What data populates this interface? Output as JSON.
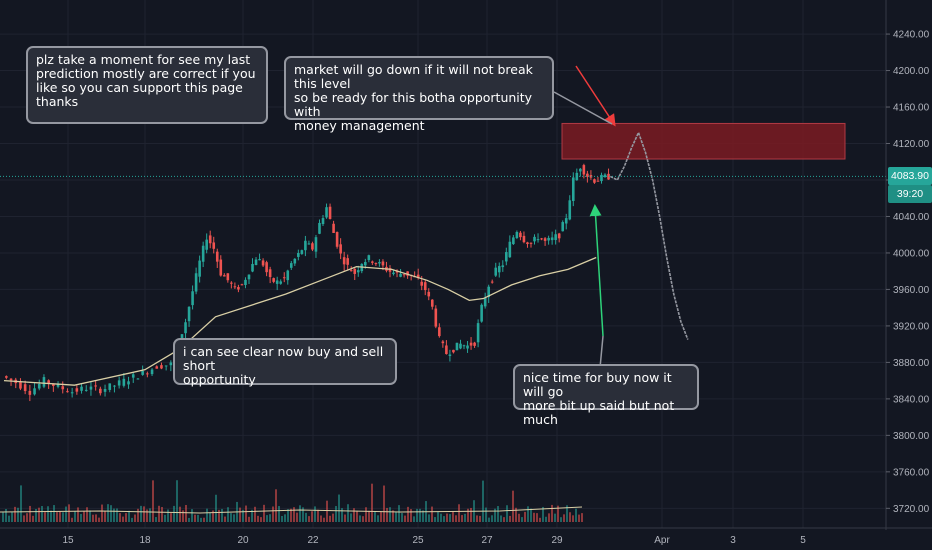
{
  "colors": {
    "background": "#131722",
    "grid": "#1f2330",
    "up": "#26a69a",
    "down": "#ef5350",
    "ma": "#d9cfa5",
    "zone": "#7b1b22",
    "current_price": "#26a69a"
  },
  "chart_data": {
    "type": "candlestick",
    "y_axis": {
      "ticks": [
        "3720.00",
        "3760.00",
        "3800.00",
        "3840.00",
        "3880.00",
        "3920.00",
        "3960.00",
        "4000.00",
        "4040.00",
        "4080.00",
        "4120.00",
        "4160.00",
        "4200.00",
        "4240.00"
      ],
      "ylim": [
        3705,
        4262
      ]
    },
    "x_axis": {
      "ticks": [
        "15",
        "18",
        "20",
        "22",
        "25",
        "27",
        "29",
        "Apr",
        "3",
        "5"
      ]
    },
    "current_price": {
      "value": 4083.9,
      "label": "4083.90",
      "countdown": "39:20"
    },
    "resistance_zone": {
      "from": 4103,
      "to": 4142
    },
    "price_path": [
      [
        0,
        3865
      ],
      [
        2,
        3858
      ],
      [
        4,
        3848
      ],
      [
        6,
        3860
      ],
      [
        8,
        3853
      ],
      [
        10,
        3848
      ],
      [
        12,
        3852
      ],
      [
        14,
        3850
      ],
      [
        16,
        3855
      ],
      [
        18,
        3862
      ],
      [
        20,
        3868
      ],
      [
        22,
        3876
      ],
      [
        24,
        3878
      ],
      [
        25,
        3900
      ],
      [
        26,
        3925
      ],
      [
        27,
        3958
      ],
      [
        28,
        3990
      ],
      [
        29,
        4018
      ],
      [
        30,
        4005
      ],
      [
        31,
        3978
      ],
      [
        32,
        3970
      ],
      [
        33,
        3960
      ],
      [
        34,
        3965
      ],
      [
        35,
        3980
      ],
      [
        36,
        3995
      ],
      [
        37,
        3988
      ],
      [
        38,
        3970
      ],
      [
        39,
        3968
      ],
      [
        40,
        3972
      ],
      [
        41,
        3988
      ],
      [
        42,
        3998
      ],
      [
        43,
        4010
      ],
      [
        44,
        4005
      ],
      [
        45,
        4032
      ],
      [
        46,
        4050
      ],
      [
        47,
        4022
      ],
      [
        48,
        3998
      ],
      [
        49,
        3985
      ],
      [
        50,
        3978
      ],
      [
        51,
        3990
      ],
      [
        52,
        3994
      ],
      [
        53,
        3990
      ],
      [
        54,
        3985
      ],
      [
        55,
        3980
      ],
      [
        56,
        3977
      ],
      [
        57,
        3978
      ],
      [
        58,
        3975
      ],
      [
        59,
        3970
      ],
      [
        60,
        3960
      ],
      [
        61,
        3940
      ],
      [
        62,
        3905
      ],
      [
        63,
        3890
      ],
      [
        64,
        3895
      ],
      [
        65,
        3900
      ],
      [
        66,
        3898
      ],
      [
        67,
        3902
      ],
      [
        68,
        3940
      ],
      [
        69,
        3965
      ],
      [
        70,
        3980
      ],
      [
        71,
        3988
      ],
      [
        72,
        4010
      ],
      [
        73,
        4025
      ],
      [
        74,
        4015
      ],
      [
        75,
        4010
      ],
      [
        76,
        4018
      ],
      [
        77,
        4012
      ],
      [
        78,
        4015
      ],
      [
        79,
        4020
      ],
      [
        80,
        4040
      ],
      [
        81,
        4080
      ],
      [
        82,
        4095
      ],
      [
        83,
        4085
      ],
      [
        84,
        4080
      ],
      [
        85,
        4082
      ],
      [
        86,
        4083.9
      ]
    ],
    "moving_average": [
      [
        0,
        3860
      ],
      [
        10,
        3855
      ],
      [
        20,
        3872
      ],
      [
        25,
        3895
      ],
      [
        30,
        3930
      ],
      [
        40,
        3955
      ],
      [
        45,
        3970
      ],
      [
        50,
        3985
      ],
      [
        55,
        3982
      ],
      [
        60,
        3970
      ],
      [
        63,
        3960
      ],
      [
        66,
        3948
      ],
      [
        68,
        3950
      ],
      [
        72,
        3965
      ],
      [
        76,
        3975
      ],
      [
        80,
        3982
      ],
      [
        84,
        3995
      ]
    ],
    "projection": [
      [
        86,
        4083.9
      ],
      [
        87,
        4080
      ],
      [
        88,
        4095
      ],
      [
        89,
        4115
      ],
      [
        90,
        4132
      ],
      [
        91,
        4110
      ],
      [
        92,
        4080
      ],
      [
        93,
        4040
      ],
      [
        94,
        3995
      ],
      [
        95,
        3955
      ],
      [
        96,
        3925
      ],
      [
        97,
        3905
      ]
    ]
  },
  "annotations": {
    "top_left": "plz take a moment for see my last\nprediction mostly are correct if you\nlike so you can support this page\nthanks",
    "top_center": "market will go down if it will not break this level\nso be ready for this botha opportunity with\nmoney management",
    "middle": "i can see clear now buy and sell short\nopportunity",
    "bottom_right": "nice time for buy now it will go\nmore bit up said but not much"
  }
}
